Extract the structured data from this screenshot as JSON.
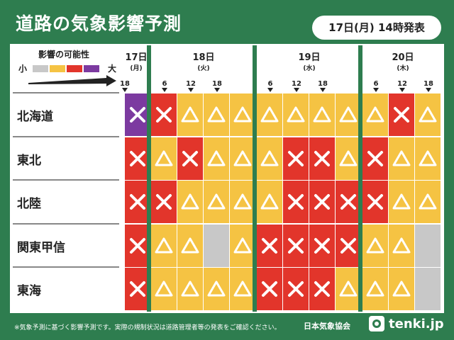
{
  "header": {
    "title": "道路の気象影響予測",
    "issued": "17日(月) 14時発表"
  },
  "legend": {
    "title": "影響の可能性",
    "low": "小",
    "high": "大",
    "colors": [
      "#c8c8c8",
      "#f5c343",
      "#e2352b",
      "#7c3aa0"
    ]
  },
  "days": [
    {
      "label": "17日",
      "dow": "(月)"
    },
    {
      "label": "18日",
      "dow": "(火)"
    },
    {
      "label": "19日",
      "dow": "(水)"
    },
    {
      "label": "20日",
      "dow": "(木)"
    }
  ],
  "hours": [
    "18",
    "6",
    "12",
    "18",
    "6",
    "12",
    "18",
    "6",
    "12",
    "18"
  ],
  "regions": [
    "北海道",
    "東北",
    "北陸",
    "関東甲信",
    "東海"
  ],
  "levels": {
    "0": {
      "color": "#c8c8c8",
      "mark": ""
    },
    "1": {
      "color": "#f5c343",
      "mark": "triangle"
    },
    "2": {
      "color": "#e2352b",
      "mark": "cross"
    },
    "3": {
      "color": "#7c3aa0",
      "mark": "cross"
    }
  },
  "grid": [
    [
      3,
      2,
      1,
      1,
      1,
      1,
      1,
      1,
      1,
      1,
      2,
      1
    ],
    [
      2,
      1,
      2,
      1,
      1,
      1,
      2,
      2,
      1,
      2,
      1,
      1
    ],
    [
      2,
      2,
      1,
      1,
      1,
      1,
      2,
      2,
      2,
      2,
      1,
      1
    ],
    [
      2,
      1,
      1,
      0,
      1,
      2,
      2,
      2,
      2,
      1,
      1,
      0
    ],
    [
      2,
      1,
      1,
      1,
      1,
      2,
      2,
      2,
      1,
      1,
      1,
      0
    ]
  ],
  "footer": {
    "note": "※気象予測に基づく影響予測です。実際の規制状況は道路管理者等の発表をご確認ください。",
    "org": "日本気象協会",
    "brand": "tenki.jp"
  }
}
